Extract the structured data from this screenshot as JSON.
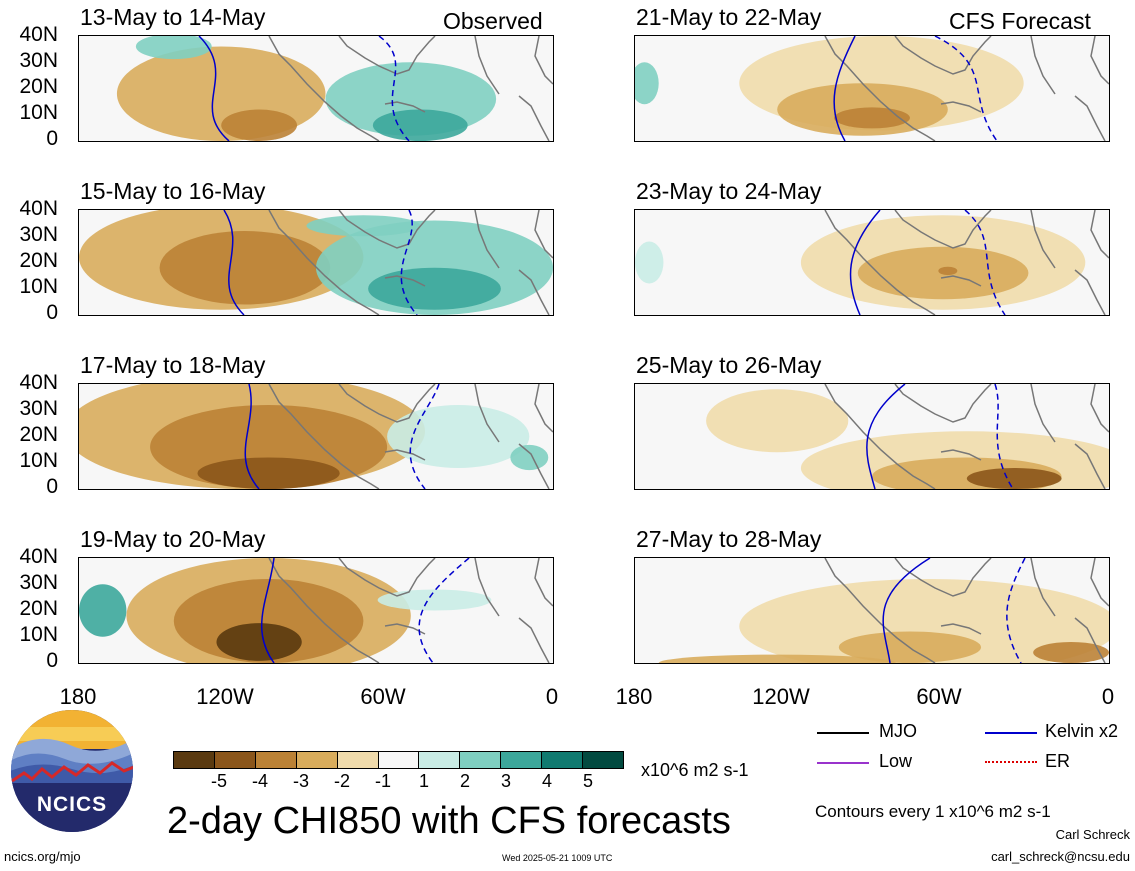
{
  "panels": [
    {
      "title": "13-May to 14-May",
      "corner": "Observed"
    },
    {
      "title": "15-May to 16-May",
      "corner": ""
    },
    {
      "title": "17-May to 18-May",
      "corner": ""
    },
    {
      "title": "19-May to 20-May",
      "corner": ""
    },
    {
      "title": "21-May to 22-May",
      "corner": "CFS Forecast"
    },
    {
      "title": "23-May to 24-May",
      "corner": ""
    },
    {
      "title": "25-May to 26-May",
      "corner": ""
    },
    {
      "title": "27-May to 28-May",
      "corner": ""
    }
  ],
  "lat_labels": [
    "40N",
    "30N",
    "20N",
    "10N",
    "0"
  ],
  "lon_labels": [
    "180",
    "120W",
    "60W",
    "0"
  ],
  "colorbar": {
    "labels": [
      "-5",
      "-4",
      "-3",
      "-2",
      "-1",
      "1",
      "2",
      "3",
      "4",
      "5"
    ],
    "colors": [
      "#5a3a10",
      "#8b561b",
      "#bb8236",
      "#d8ac5c",
      "#f0dbab",
      "#f7f7f7",
      "#c9ece5",
      "#7fcfc1",
      "#3ca79b",
      "#107a70",
      "#024a40"
    ],
    "units": "x10^6 m2 s-1"
  },
  "legend": [
    {
      "label": "MJO",
      "color": "#000000"
    },
    {
      "label": "Kelvin x2",
      "color": "#0000cc"
    },
    {
      "label": "Low",
      "color": "#9933cc"
    },
    {
      "label": "ER",
      "color": "#dd0000"
    }
  ],
  "main_title": "2-day CHI850 with CFS forecasts",
  "contour_note": "Contours every 1 x10^6 m2 s-1",
  "author": "Carl Schreck",
  "email": "carl_schreck@ncsu.edu",
  "url": "ncics.org/mjo",
  "timestamp": "Wed 2025-05-21 1009 UTC",
  "logo_text": "NCICS",
  "colors": {
    "kelvin": "#0000cc",
    "land": "#777777"
  }
}
